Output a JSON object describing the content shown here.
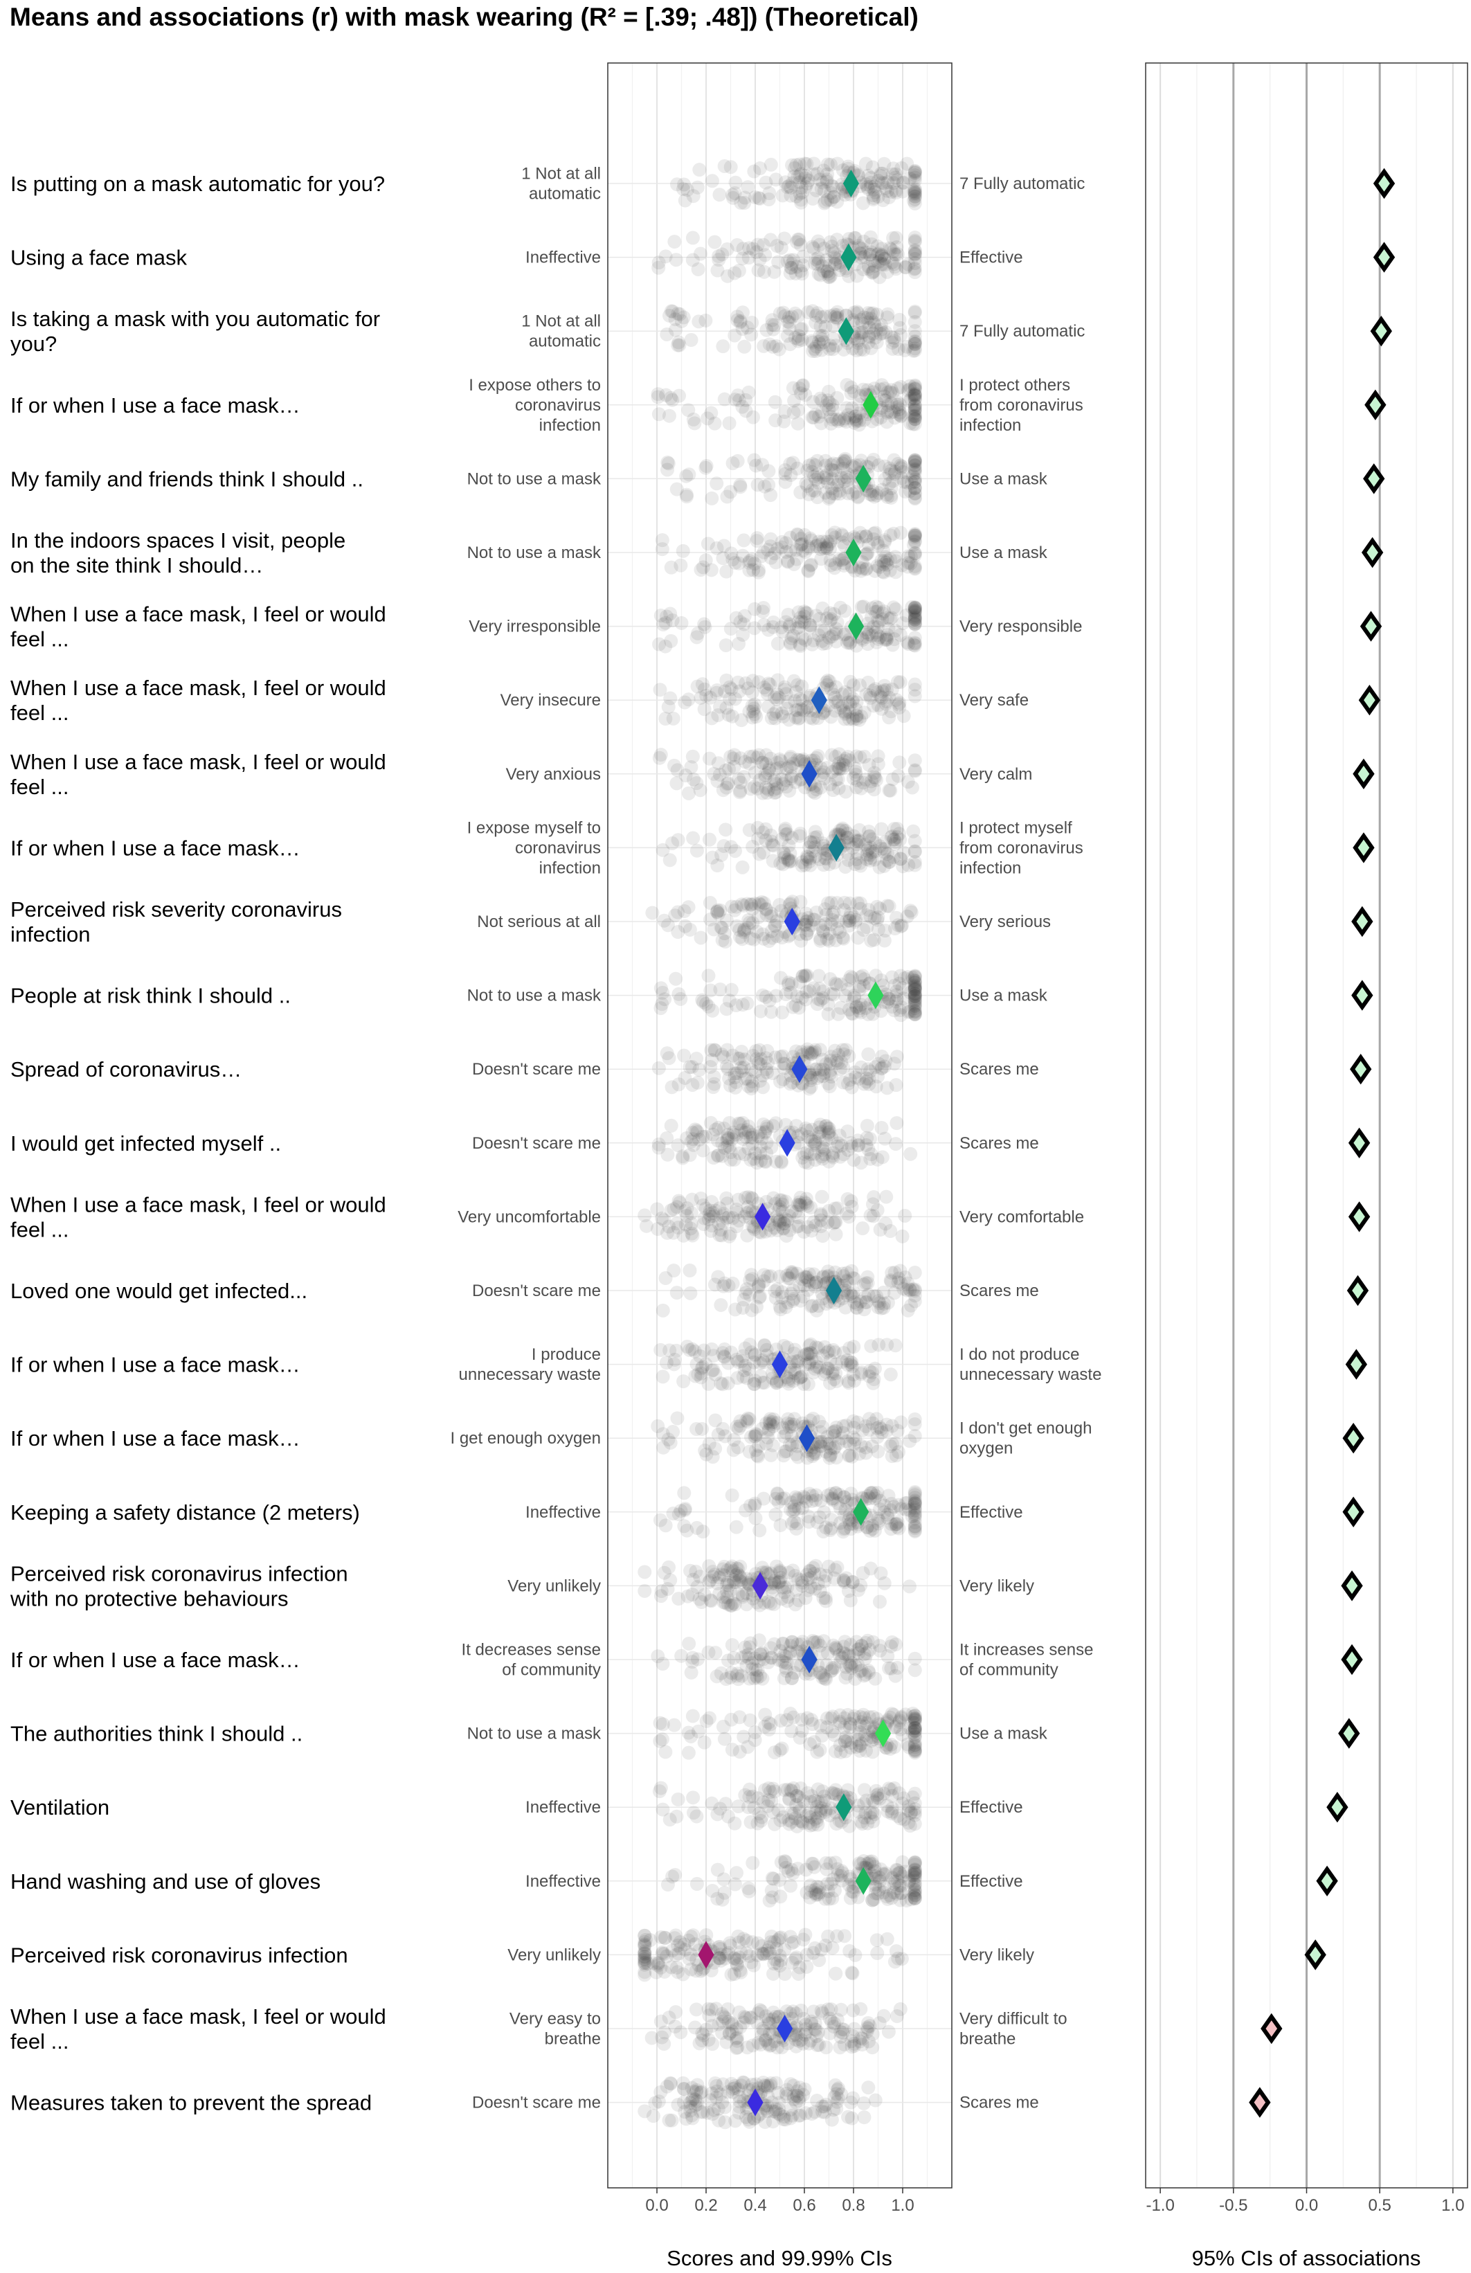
{
  "title": "Means and associations (r) with mask wearing (R² = [.39; .48]) (Theoretical)",
  "chart_data": [
    {
      "type": "scatter",
      "panel": "means",
      "xlabel": "Scores and 99.99% CIs",
      "xlim": [
        -0.2,
        1.2
      ],
      "x_ticks": [
        "0.0",
        "0.2",
        "0.4",
        "0.6",
        "0.8",
        "1.0"
      ],
      "grid": true,
      "items": [
        {
          "label": [
            "Is putting on a mask automatic for you?"
          ],
          "left": [
            "1 Not at all",
            "automatic"
          ],
          "right": [
            "7 Fully automatic"
          ],
          "mean": 0.79,
          "color": "#0f9b78"
        },
        {
          "label": [
            "Using a face mask"
          ],
          "left": [
            "Ineffective"
          ],
          "right": [
            "Effective"
          ],
          "mean": 0.78,
          "color": "#0f9b78"
        },
        {
          "label": [
            "Is taking a mask with you automatic for",
            "you?"
          ],
          "left": [
            "1 Not at all",
            "automatic"
          ],
          "right": [
            "7 Fully automatic"
          ],
          "mean": 0.77,
          "color": "#0f9b78"
        },
        {
          "label": [
            "If or when I use a face mask…"
          ],
          "left": [
            "I expose others to",
            "coronavirus",
            "infection"
          ],
          "right": [
            "I protect others",
            "from coronavirus",
            "infection"
          ],
          "mean": 0.87,
          "color": "#22cc44"
        },
        {
          "label": [
            "My family and friends think I should .."
          ],
          "left": [
            "Not to use a mask"
          ],
          "right": [
            "Use a mask"
          ],
          "mean": 0.84,
          "color": "#1db35c"
        },
        {
          "label": [
            "In the indoors spaces I visit, people",
            "on the site think I should…"
          ],
          "left": [
            "Not to use a mask"
          ],
          "right": [
            "Use a mask"
          ],
          "mean": 0.8,
          "color": "#1db35c"
        },
        {
          "label": [
            "When I use a face mask, I feel or would",
            "feel ..."
          ],
          "left": [
            "Very irresponsible"
          ],
          "right": [
            "Very responsible"
          ],
          "mean": 0.81,
          "color": "#1db35c"
        },
        {
          "label": [
            "When I use a face mask, I feel or would",
            "feel ..."
          ],
          "left": [
            "Very insecure"
          ],
          "right": [
            "Very safe"
          ],
          "mean": 0.66,
          "color": "#1f5fc0"
        },
        {
          "label": [
            "When I use a face mask, I feel or would",
            "feel ..."
          ],
          "left": [
            "Very anxious"
          ],
          "right": [
            "Very calm"
          ],
          "mean": 0.62,
          "color": "#1f4fc8"
        },
        {
          "label": [
            "If or when I use a face mask…"
          ],
          "left": [
            "I expose myself to",
            "coronavirus",
            "infection"
          ],
          "right": [
            "I protect myself",
            "from coronavirus",
            "infection"
          ],
          "mean": 0.73,
          "color": "#137f8f"
        },
        {
          "label": [
            "Perceived risk severity coronavirus",
            "infection"
          ],
          "left": [
            "Not serious at all"
          ],
          "right": [
            "Very serious"
          ],
          "mean": 0.55,
          "color": "#2a3fe0"
        },
        {
          "label": [
            "People at risk think I should .."
          ],
          "left": [
            "Not to use a mask"
          ],
          "right": [
            "Use a mask"
          ],
          "mean": 0.89,
          "color": "#2ed35a"
        },
        {
          "label": [
            "Spread of coronavirus…"
          ],
          "left": [
            "Doesn't scare me"
          ],
          "right": [
            "Scares me"
          ],
          "mean": 0.58,
          "color": "#2648d8"
        },
        {
          "label": [
            "I would get infected myself .."
          ],
          "left": [
            "Doesn't scare me"
          ],
          "right": [
            "Scares me"
          ],
          "mean": 0.53,
          "color": "#2a3fe0"
        },
        {
          "label": [
            "When I use a face mask, I feel or would",
            "feel ..."
          ],
          "left": [
            "Very uncomfortable"
          ],
          "right": [
            "Very comfortable"
          ],
          "mean": 0.43,
          "color": "#3a2be0"
        },
        {
          "label": [
            "Loved one would get infected..."
          ],
          "left": [
            "Doesn't scare me"
          ],
          "right": [
            "Scares me"
          ],
          "mean": 0.72,
          "color": "#137f8f"
        },
        {
          "label": [
            "If or when I use a face mask…"
          ],
          "left": [
            "I produce",
            "unnecessary waste"
          ],
          "right": [
            "I do not produce",
            "unnecessary waste"
          ],
          "mean": 0.5,
          "color": "#2a3fe0"
        },
        {
          "label": [
            "If or when I use a face mask…"
          ],
          "left": [
            "I get enough oxygen"
          ],
          "right": [
            "I don't get enough",
            "oxygen"
          ],
          "mean": 0.61,
          "color": "#1f4fc8"
        },
        {
          "label": [
            "Keeping a safety distance (2 meters)"
          ],
          "left": [
            "Ineffective"
          ],
          "right": [
            "Effective"
          ],
          "mean": 0.83,
          "color": "#1db35c"
        },
        {
          "label": [
            "Perceived risk coronavirus infection",
            "with no protective behaviours"
          ],
          "left": [
            "Very unlikely"
          ],
          "right": [
            "Very likely"
          ],
          "mean": 0.42,
          "color": "#4a2ad8"
        },
        {
          "label": [
            "If or when I use a face mask…"
          ],
          "left": [
            "It decreases sense",
            "of community"
          ],
          "right": [
            "It increases sense",
            "of community"
          ],
          "mean": 0.62,
          "color": "#1f4fc8"
        },
        {
          "label": [
            "The authorities think I should .."
          ],
          "left": [
            "Not to use a mask"
          ],
          "right": [
            "Use a mask"
          ],
          "mean": 0.92,
          "color": "#33dd55"
        },
        {
          "label": [
            "Ventilation"
          ],
          "left": [
            "Ineffective"
          ],
          "right": [
            "Effective"
          ],
          "mean": 0.76,
          "color": "#0f9b78"
        },
        {
          "label": [
            "Hand washing and use of gloves"
          ],
          "left": [
            "Ineffective"
          ],
          "right": [
            "Effective"
          ],
          "mean": 0.84,
          "color": "#1db35c"
        },
        {
          "label": [
            "Perceived risk coronavirus infection"
          ],
          "left": [
            "Very unlikely"
          ],
          "right": [
            "Very likely"
          ],
          "mean": 0.2,
          "color": "#a3166e"
        },
        {
          "label": [
            "When I use a face mask, I feel or would",
            "feel ..."
          ],
          "left": [
            "Very easy to",
            "breathe"
          ],
          "right": [
            "Very difficult to",
            "breathe"
          ],
          "mean": 0.52,
          "color": "#2a3fe0"
        },
        {
          "label": [
            "Measures taken to prevent the spread"
          ],
          "left": [
            "Doesn't scare me"
          ],
          "right": [
            "Scares me"
          ],
          "mean": 0.4,
          "color": "#3a2be0"
        }
      ]
    },
    {
      "type": "scatter",
      "panel": "associations",
      "xlabel": "95% CIs of associations",
      "xlim": [
        -1.1,
        1.1
      ],
      "x_ticks": [
        "-1.0",
        "-0.5",
        "0.0",
        "0.5",
        "1.0"
      ],
      "grid": true,
      "r": [
        0.53,
        0.53,
        0.51,
        0.47,
        0.46,
        0.45,
        0.44,
        0.43,
        0.39,
        0.39,
        0.38,
        0.38,
        0.37,
        0.36,
        0.36,
        0.35,
        0.34,
        0.32,
        0.32,
        0.31,
        0.31,
        0.29,
        0.21,
        0.14,
        0.06,
        -0.24,
        -0.32
      ]
    }
  ]
}
